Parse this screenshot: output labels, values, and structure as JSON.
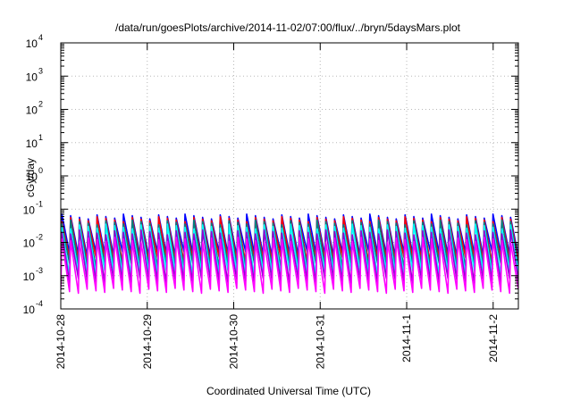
{
  "chart_data": {
    "type": "line",
    "title": "/data/run/goesPlots/archive/2014-11-02/07:00/flux/../bryn/5daysMars.plot",
    "xlabel": "Coordinated Universal Time (UTC)",
    "ylabel": "cGy/day",
    "yscale": "log",
    "ylim": [
      0.0001,
      10000
    ],
    "xlim": [
      "2014-10-28T00:00",
      "2014-11-02T07:00"
    ],
    "grid": true,
    "x_ticks": [
      "2014-10-28",
      "2014-10-29",
      "2014-10-30",
      "2014-10-31",
      "2014-11-1",
      "2014-11-2"
    ],
    "y_ticks": [
      {
        "base": "10",
        "exp": "-4"
      },
      {
        "base": "10",
        "exp": "-3"
      },
      {
        "base": "10",
        "exp": "-2"
      },
      {
        "base": "10",
        "exp": "-1"
      },
      {
        "base": "10",
        "exp": "0"
      },
      {
        "base": "10",
        "exp": "1"
      },
      {
        "base": "10",
        "exp": "2"
      },
      {
        "base": "10",
        "exp": "3"
      },
      {
        "base": "10",
        "exp": "4"
      }
    ],
    "series_pattern": {
      "shape": "periodic sawtooth",
      "cycles": 52,
      "note_values": "each series oscillates between a peak and trough in cGy/day"
    },
    "series": [
      {
        "color": "#0000ff",
        "peak": 0.06,
        "trough": 0.0045
      },
      {
        "color": "#ff0000",
        "peak": 0.05,
        "trough": 0.003
      },
      {
        "color": "#008080",
        "peak": 0.04,
        "trough": 0.002
      },
      {
        "color": "#00ffff",
        "peak": 0.03,
        "trough": 0.0012
      },
      {
        "color": "#9400d3",
        "peak": 0.02,
        "trough": 0.0007
      },
      {
        "color": "#ff00ff",
        "peak": 0.012,
        "trough": 0.00035
      }
    ]
  }
}
